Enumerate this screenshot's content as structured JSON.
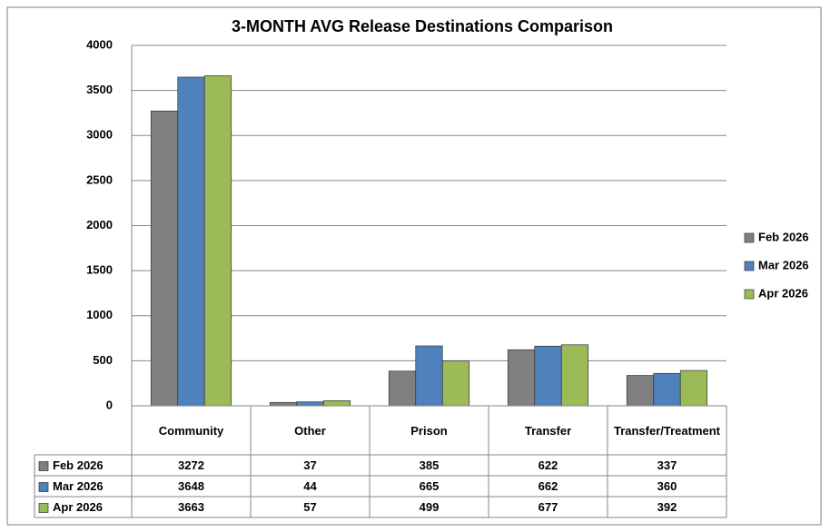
{
  "chart_data": {
    "type": "bar",
    "title": "3-MONTH AVG Release Destinations Comparison",
    "categories": [
      "Community",
      "Other",
      "Prison",
      "Transfer",
      "Transfer/Treatment"
    ],
    "series": [
      {
        "name": "Feb 2026",
        "color": "#808080",
        "values": [
          3272,
          37,
          385,
          622,
          337
        ]
      },
      {
        "name": "Mar 2026",
        "color": "#4f81bd",
        "values": [
          3648,
          44,
          665,
          662,
          360
        ]
      },
      {
        "name": "Apr 2026",
        "color": "#9bbb59",
        "values": [
          3663,
          57,
          499,
          677,
          392
        ]
      }
    ],
    "ylim": [
      0,
      4000
    ],
    "yticks": [
      0,
      500,
      1000,
      1500,
      2000,
      2500,
      3000,
      3500,
      4000
    ],
    "grid": true,
    "legend": "right",
    "data_table": true
  }
}
